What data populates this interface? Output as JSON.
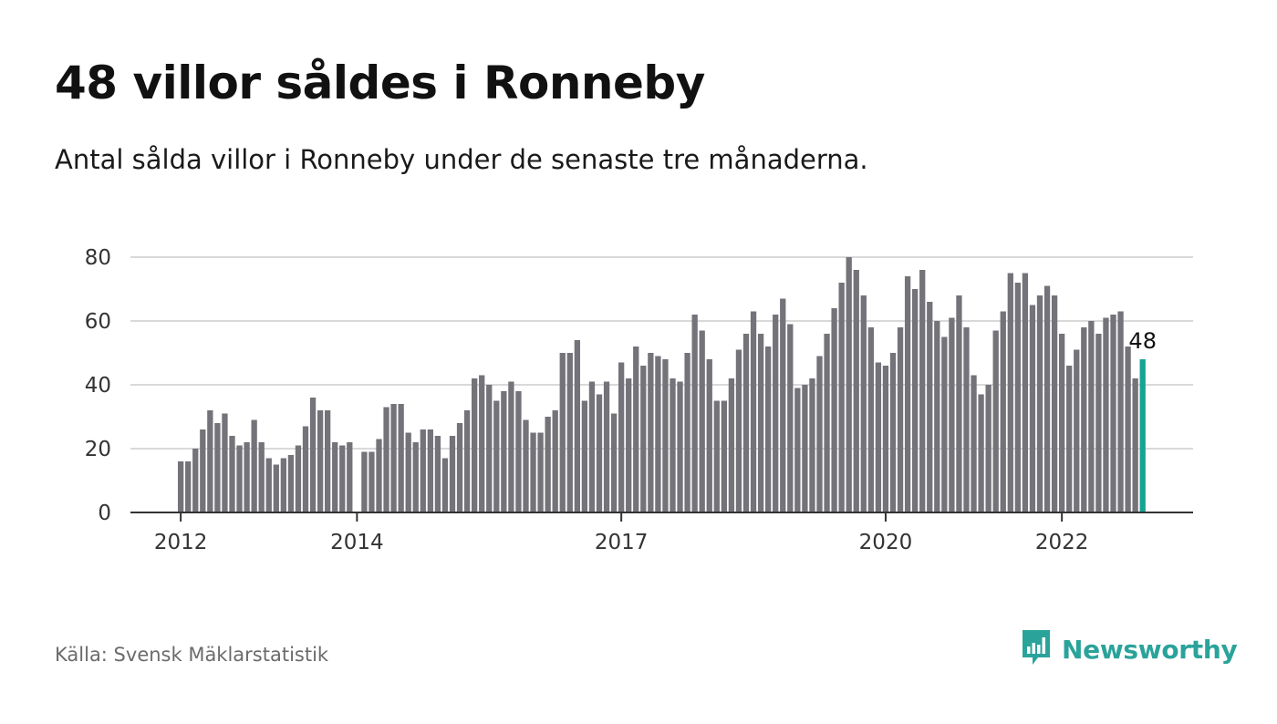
{
  "title": "48 villor såldes i Ronneby",
  "subtitle": "Antal sålda villor i Ronneby under de senaste tre månaderna.",
  "source": "Källa: Svensk Mäklarstatistik",
  "brand": {
    "name": "Newsworthy",
    "icon": "newsworthy-logo-icon"
  },
  "colors": {
    "bar": "#747379",
    "highlight": "#16a394",
    "grid": "#d9d9d9",
    "axis": "#333333",
    "brand": "#2aa39a"
  },
  "chart_data": {
    "type": "bar",
    "ylim": [
      0,
      80
    ],
    "yticks": [
      0,
      20,
      40,
      60,
      80
    ],
    "xticks": [
      {
        "label": "2012",
        "index": 0
      },
      {
        "label": "2014",
        "index": 24
      },
      {
        "label": "2017",
        "index": 60
      },
      {
        "label": "2020",
        "index": 96
      },
      {
        "label": "2022",
        "index": 120
      }
    ],
    "grid": true,
    "highlight_label": "48",
    "values": [
      16,
      16,
      20,
      26,
      32,
      28,
      31,
      24,
      21,
      22,
      29,
      22,
      17,
      15,
      17,
      18,
      21,
      27,
      36,
      32,
      32,
      22,
      21,
      22,
      null,
      19,
      19,
      23,
      33,
      34,
      34,
      25,
      22,
      26,
      26,
      24,
      17,
      24,
      28,
      32,
      42,
      43,
      40,
      35,
      38,
      41,
      38,
      29,
      25,
      25,
      30,
      32,
      50,
      50,
      54,
      35,
      41,
      37,
      41,
      31,
      47,
      42,
      52,
      46,
      50,
      49,
      48,
      42,
      41,
      50,
      62,
      57,
      48,
      35,
      35,
      42,
      51,
      56,
      63,
      56,
      52,
      62,
      67,
      59,
      39,
      40,
      42,
      49,
      56,
      64,
      72,
      80,
      76,
      68,
      58,
      47,
      46,
      50,
      58,
      74,
      70,
      76,
      66,
      60,
      55,
      61,
      68,
      58,
      43,
      37,
      40,
      57,
      63,
      75,
      72,
      75,
      65,
      68,
      71,
      68,
      56,
      46,
      51,
      58,
      60,
      56,
      61,
      62,
      63,
      52,
      42,
      48
    ]
  }
}
